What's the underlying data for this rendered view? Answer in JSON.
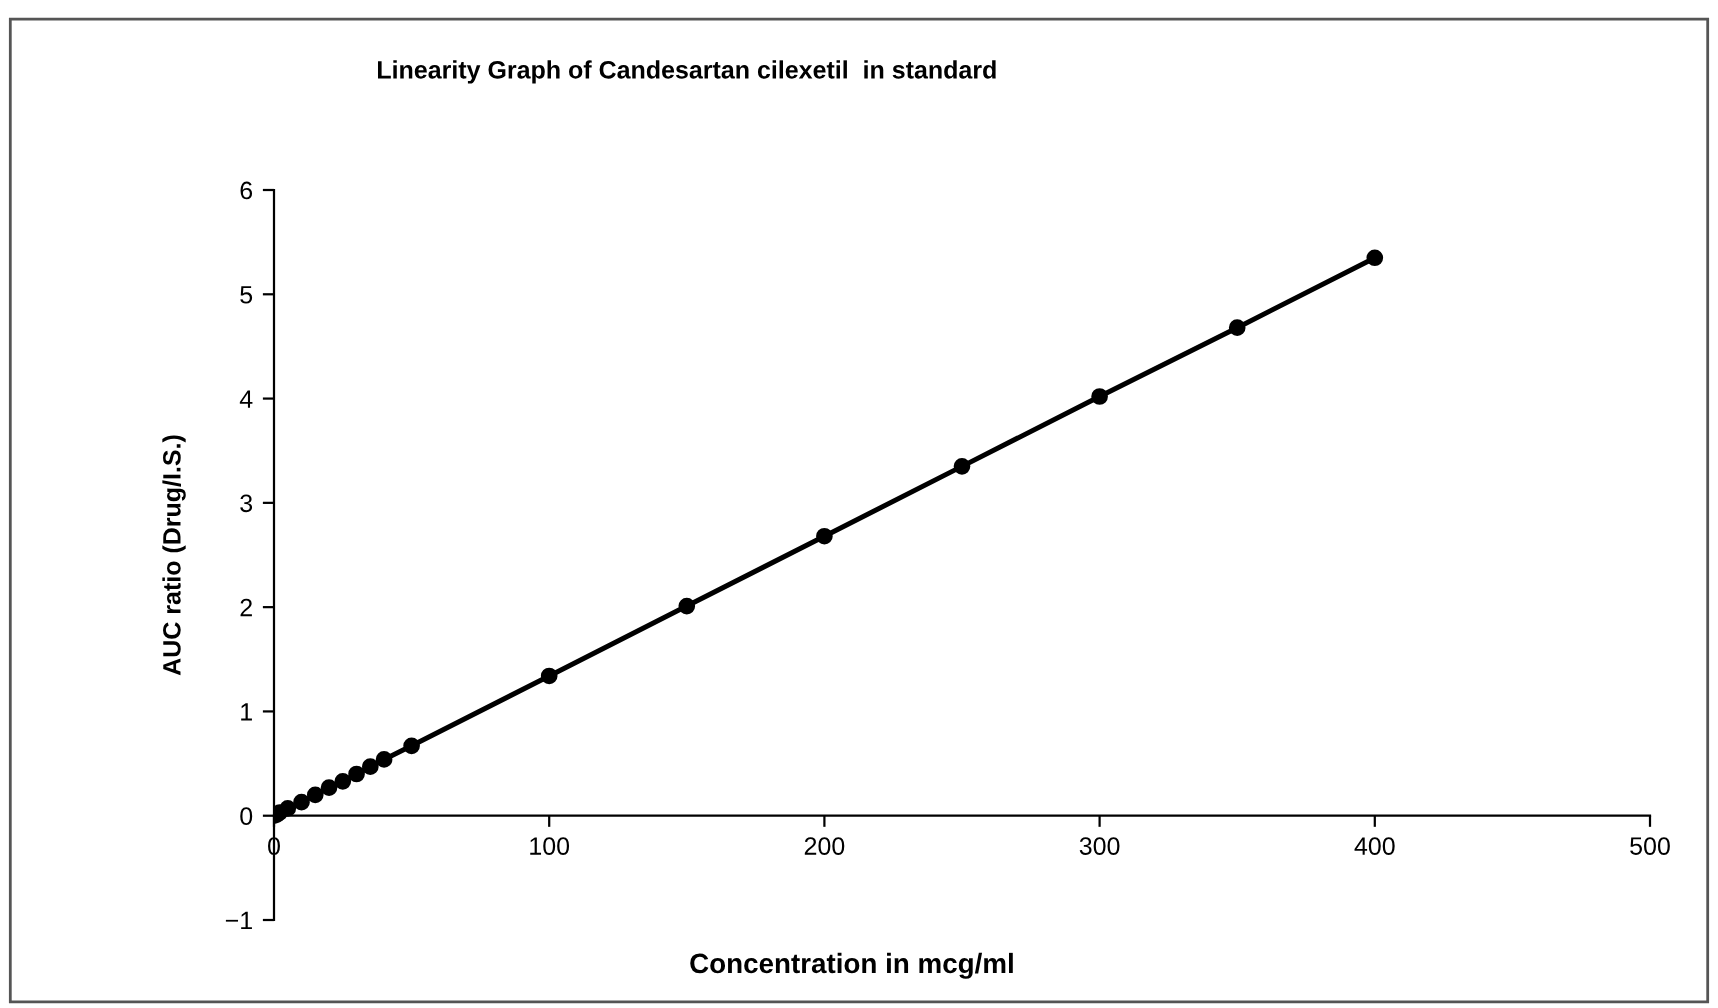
{
  "chart_data": {
    "type": "line",
    "title": "Linearity Graph of Candesartan cilexetil  in standard",
    "xlabel": "Concentration in mcg/ml",
    "ylabel": "AUC ratio (Drug/I.S.)",
    "x": [
      0,
      1,
      2,
      5,
      10,
      15,
      20,
      25,
      30,
      35,
      40,
      50,
      100,
      150,
      200,
      250,
      300,
      350,
      400
    ],
    "series": [
      {
        "color": "#000000",
        "values": [
          0,
          0.01,
          0.03,
          0.07,
          0.13,
          0.2,
          0.27,
          0.33,
          0.4,
          0.47,
          0.54,
          0.67,
          1.34,
          2.01,
          2.68,
          3.35,
          4.02,
          4.68,
          5.35
        ]
      }
    ],
    "marker": "circle",
    "line_style": "solid",
    "grid": false,
    "legend": false,
    "xlim": [
      0,
      500
    ],
    "xticks": [
      0,
      100,
      200,
      300,
      400,
      500
    ],
    "ylim": [
      -1,
      6
    ],
    "yticks": [
      {
        "value": -1,
        "label": "−1"
      },
      0,
      1,
      2,
      3,
      4,
      5,
      6
    ]
  }
}
